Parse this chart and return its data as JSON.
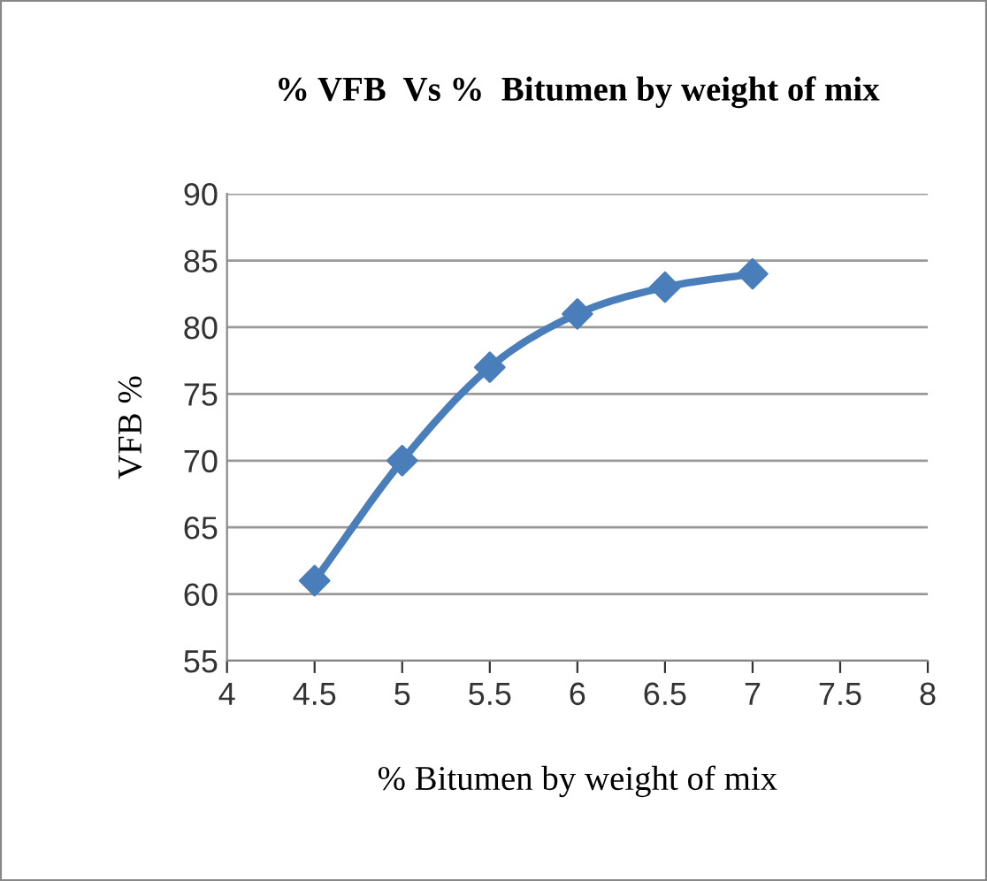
{
  "chart_data": {
    "type": "line",
    "title": "% VFB  Vs %  Bitumen by weight of mix",
    "xlabel": "% Bitumen by weight of mix",
    "ylabel": "VFB %",
    "x": [
      4.5,
      5,
      5.5,
      6,
      6.5,
      7
    ],
    "series": [
      {
        "color": "#4a7ebb",
        "values": [
          61,
          70,
          77,
          81,
          83,
          84
        ]
      }
    ],
    "xlim": [
      4,
      8
    ],
    "xticks": [
      4,
      4.5,
      5,
      5.5,
      6,
      6.5,
      7,
      7.5,
      8
    ],
    "ylim": [
      55,
      90
    ],
    "yticks": [
      55,
      60,
      65,
      70,
      75,
      80,
      85,
      90
    ],
    "grid": "y",
    "marker": "diamond",
    "line_style": "solid",
    "legend": false
  }
}
